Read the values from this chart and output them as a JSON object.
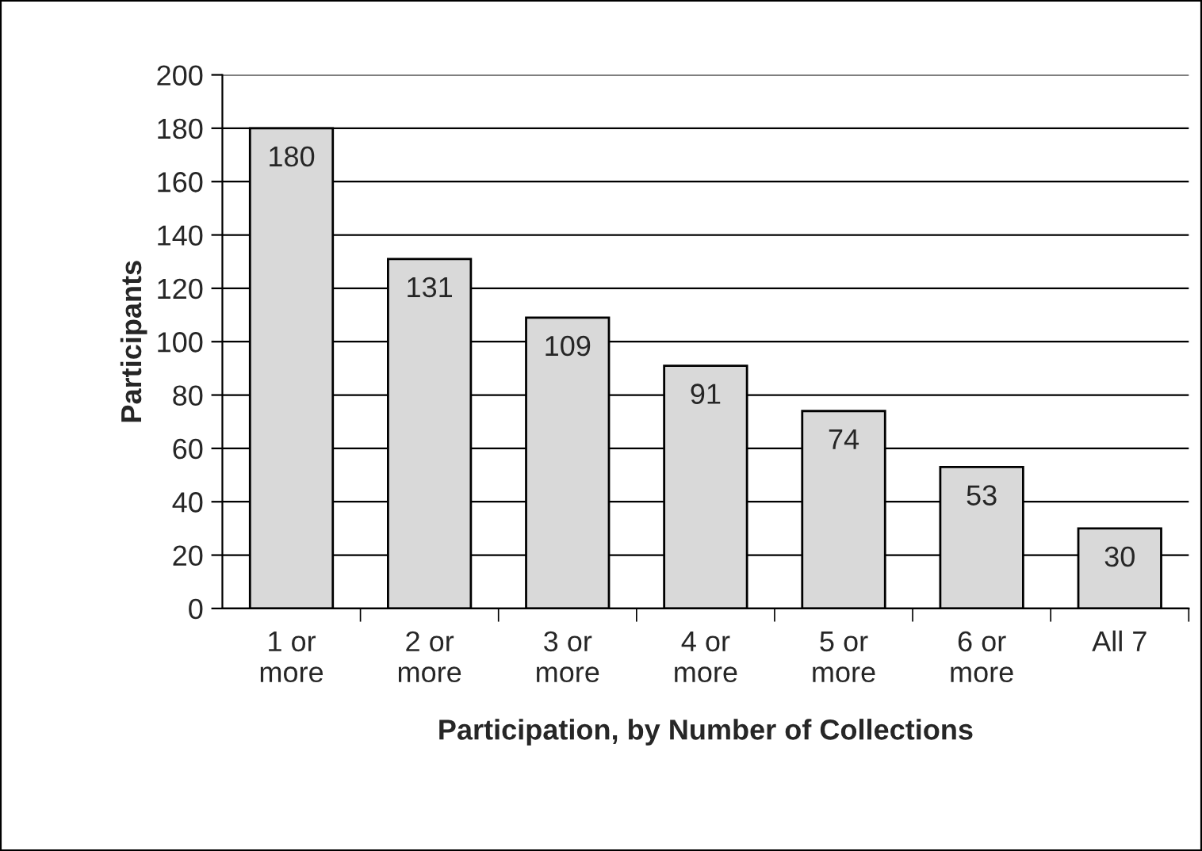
{
  "chart_data": {
    "type": "bar",
    "xlabel": "Participation, by Number of Collections",
    "ylabel": "Participants",
    "categories": [
      "1 or\nmore",
      "2 or\nmore",
      "3 or\nmore",
      "4 or\nmore",
      "5 or\nmore",
      "6 or\nmore",
      "All 7"
    ],
    "values": [
      180,
      131,
      109,
      91,
      74,
      53,
      30
    ],
    "color": "#d9d9d9",
    "ylim": [
      0,
      200
    ],
    "yticks": [
      0,
      20,
      40,
      60,
      80,
      100,
      120,
      140,
      160,
      180,
      200
    ],
    "grid": "y",
    "data_labels": true,
    "legend": false
  }
}
